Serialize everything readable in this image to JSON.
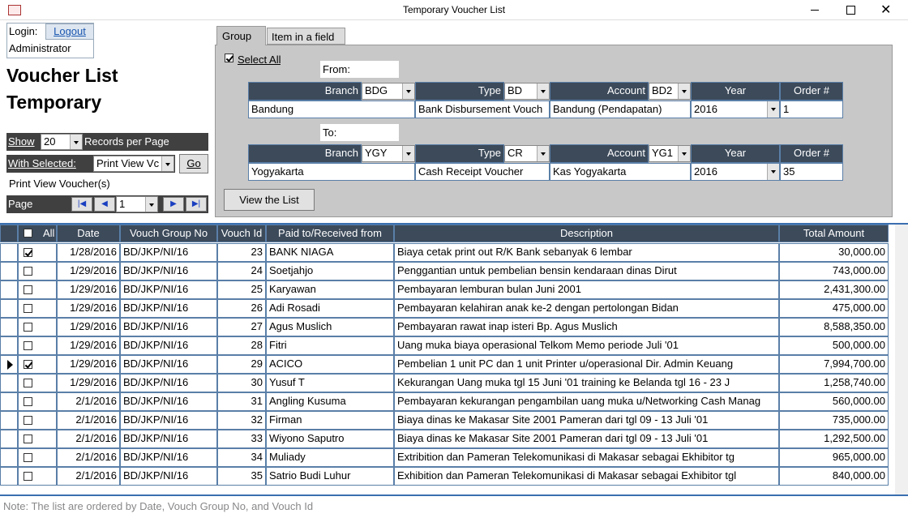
{
  "window": {
    "title": "Temporary Voucher List"
  },
  "login": {
    "label": "Login:",
    "logout": "Logout",
    "user": "Administrator"
  },
  "heading": [
    "Voucher List",
    "Temporary"
  ],
  "controls": {
    "show_label": "Show",
    "show_value": "20",
    "records_label": "Records per Page",
    "with_selected_label": "With Selected:",
    "with_selected_value": "Print View Vc",
    "go": "Go",
    "status": "Print View Voucher(s)",
    "page_label": "Page",
    "page_value": "1"
  },
  "tabs": [
    "Group",
    "Item in a field"
  ],
  "filter": {
    "select_all": "Select All",
    "select_all_checked": true,
    "from_label": "From:",
    "to_label": "To:",
    "headers": [
      "Branch",
      "Type",
      "Account",
      "Year",
      "Order #"
    ],
    "from": {
      "branch_code": "BDG",
      "type_code": "BD",
      "account_code": "BD2",
      "branch_name": "Bandung",
      "type_name": "Bank Disbursement Vouch",
      "account_name": "Bandung (Pendapatan)",
      "year": "2016",
      "order": "1"
    },
    "to": {
      "branch_code": "YGY",
      "type_code": "CR",
      "account_code": "YG1",
      "branch_name": "Yogyakarta",
      "type_name": "Cash Receipt Voucher",
      "account_name": "Kas Yogyakarta",
      "year": "2016",
      "order": "35"
    },
    "view_button": "View the List"
  },
  "grid": {
    "columns": [
      "All",
      "Date",
      "Vouch Group No",
      "Vouch Id",
      "Paid to/Received from",
      "Description",
      "Total Amount"
    ],
    "current_row": 6,
    "rows": [
      {
        "checked": true,
        "date": "1/28/2016",
        "group": "BD/JKP/NI/16",
        "id": "23",
        "paid": "BANK NIAGA",
        "desc": "Biaya cetak print out R/K Bank sebanyak 6 lembar",
        "amount": "30,000.00"
      },
      {
        "checked": false,
        "date": "1/29/2016",
        "group": "BD/JKP/NI/16",
        "id": "24",
        "paid": "Soetjahjo",
        "desc": "Penggantian untuk pembelian bensin kendaraan dinas Dirut",
        "amount": "743,000.00"
      },
      {
        "checked": false,
        "date": "1/29/2016",
        "group": "BD/JKP/NI/16",
        "id": "25",
        "paid": "Karyawan",
        "desc": "Pembayaran lemburan bulan Juni 2001",
        "amount": "2,431,300.00"
      },
      {
        "checked": false,
        "date": "1/29/2016",
        "group": "BD/JKP/NI/16",
        "id": "26",
        "paid": "Adi Rosadi",
        "desc": "Pembayaran kelahiran anak ke-2 dengan pertolongan Bidan",
        "amount": "475,000.00"
      },
      {
        "checked": false,
        "date": "1/29/2016",
        "group": "BD/JKP/NI/16",
        "id": "27",
        "paid": "Agus Muslich",
        "desc": "Pembayaran rawat inap isteri Bp. Agus Muslich",
        "amount": "8,588,350.00"
      },
      {
        "checked": false,
        "date": "1/29/2016",
        "group": "BD/JKP/NI/16",
        "id": "28",
        "paid": "Fitri",
        "desc": "Uang muka biaya operasional Telkom Memo periode Juli '01",
        "amount": "500,000.00"
      },
      {
        "checked": true,
        "date": "1/29/2016",
        "group": "BD/JKP/NI/16",
        "id": "29",
        "paid": "ACICO",
        "desc": "Pembelian 1 unit PC dan 1 unit Printer u/operasional Dir. Admin Keuang",
        "amount": "7,994,700.00"
      },
      {
        "checked": false,
        "date": "1/29/2016",
        "group": "BD/JKP/NI/16",
        "id": "30",
        "paid": "Yusuf T",
        "desc": "Kekurangan Uang muka tgl 15 Juni '01 training ke Belanda tgl 16 - 23 J",
        "amount": "1,258,740.00"
      },
      {
        "checked": false,
        "date": "2/1/2016",
        "group": "BD/JKP/NI/16",
        "id": "31",
        "paid": "Angling Kusuma",
        "desc": "Pembayaran kekurangan pengambilan uang muka u/Networking Cash Manag",
        "amount": "560,000.00"
      },
      {
        "checked": false,
        "date": "2/1/2016",
        "group": "BD/JKP/NI/16",
        "id": "32",
        "paid": "Firman",
        "desc": "Biaya dinas ke Makasar Site 2001 Pameran dari tgl 09 - 13 Juli '01",
        "amount": "735,000.00"
      },
      {
        "checked": false,
        "date": "2/1/2016",
        "group": "BD/JKP/NI/16",
        "id": "33",
        "paid": "Wiyono Saputro",
        "desc": "Biaya dinas ke Makasar Site 2001 Pameran dari tgl 09 - 13 Juli '01",
        "amount": "1,292,500.00"
      },
      {
        "checked": false,
        "date": "2/1/2016",
        "group": "BD/JKP/NI/16",
        "id": "34",
        "paid": "Muliady",
        "desc": "Extribition dan Pameran Telekomunikasi di Makasar sebagai Ekhibitor tg",
        "amount": "965,000.00"
      },
      {
        "checked": false,
        "date": "2/1/2016",
        "group": "BD/JKP/NI/16",
        "id": "35",
        "paid": "Satrio Budi Luhur",
        "desc": "Exhibition dan Pameran Telekomunikasi di Makasar sebagai Exhibitor tgl",
        "amount": "840,000.00"
      }
    ]
  },
  "note": "Note: The list are ordered by Date, Vouch Group No, and Vouch Id"
}
